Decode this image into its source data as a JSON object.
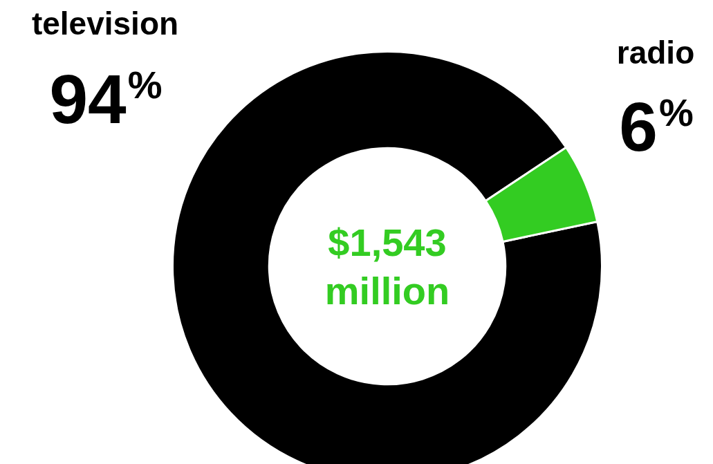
{
  "chart_data": {
    "type": "donut",
    "categories": [
      "television",
      "radio"
    ],
    "values": [
      94,
      6
    ],
    "colors": [
      "#000000",
      "#33cc22"
    ],
    "value_labels": [
      "94%",
      "6%"
    ],
    "annotations": [
      "$1,543 million"
    ],
    "legend": false
  }
}
